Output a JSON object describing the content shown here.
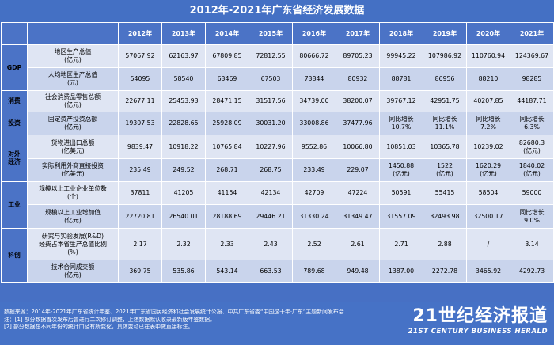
{
  "title": "2012年-2021年广东省经济发展数据",
  "years": [
    "2012年",
    "2013年",
    "2014年",
    "2015年",
    "2016年",
    "2017年",
    "2018年",
    "2019年",
    "2020年",
    "2021年"
  ],
  "categories": {
    "gdp": "GDP",
    "consumption": "消费",
    "investment": "投资",
    "trade1": "对外",
    "trade2": "经济",
    "industry": "工业",
    "innovation": "科创"
  },
  "rows": [
    {
      "label": [
        "地区生产总值",
        "(亿元)"
      ],
      "values": [
        [
          "57067.92"
        ],
        [
          "62163.97"
        ],
        [
          "67809.85"
        ],
        [
          "72812.55"
        ],
        [
          "80666.72"
        ],
        [
          "89705.23"
        ],
        [
          "99945.22"
        ],
        [
          "107986.92"
        ],
        [
          "110760.94"
        ],
        [
          "124369.67"
        ]
      ]
    },
    {
      "label": [
        "人均地区生产总值",
        "(元)"
      ],
      "values": [
        [
          "54095"
        ],
        [
          "58540"
        ],
        [
          "63469"
        ],
        [
          "67503"
        ],
        [
          "73844"
        ],
        [
          "80932"
        ],
        [
          "88781"
        ],
        [
          "86956"
        ],
        [
          "88210"
        ],
        [
          "98285"
        ]
      ]
    },
    {
      "label": [
        "社会消费品零售总额",
        "(亿元)"
      ],
      "values": [
        [
          "22677.11"
        ],
        [
          "25453.93"
        ],
        [
          "28471.15"
        ],
        [
          "31517.56"
        ],
        [
          "34739.00"
        ],
        [
          "38200.07"
        ],
        [
          "39767.12"
        ],
        [
          "42951.75"
        ],
        [
          "40207.85"
        ],
        [
          "44187.71"
        ]
      ]
    },
    {
      "label": [
        "固定资产投资总额",
        "(亿元)"
      ],
      "values": [
        [
          "19307.53"
        ],
        [
          "22828.65"
        ],
        [
          "25928.09"
        ],
        [
          "30031.20"
        ],
        [
          "33008.86"
        ],
        [
          "37477.96"
        ],
        [
          "同比增长",
          "10.7%"
        ],
        [
          "同比增长",
          "11.1%"
        ],
        [
          "同比增长",
          "7.2%"
        ],
        [
          "同比增长",
          "6.3%"
        ]
      ]
    },
    {
      "label": [
        "货物进出口总额",
        "(亿美元)"
      ],
      "values": [
        [
          "9839.47"
        ],
        [
          "10918.22"
        ],
        [
          "10765.84"
        ],
        [
          "10227.96"
        ],
        [
          "9552.86"
        ],
        [
          "10066.80"
        ],
        [
          "10851.03"
        ],
        [
          "10365.78"
        ],
        [
          "10239.02"
        ],
        [
          "82680.3",
          "(亿元)"
        ]
      ]
    },
    {
      "label": [
        "实际利用外商直接投资",
        "(亿美元)"
      ],
      "values": [
        [
          "235.49"
        ],
        [
          "249.52"
        ],
        [
          "268.71"
        ],
        [
          "268.75"
        ],
        [
          "233.49"
        ],
        [
          "229.07"
        ],
        [
          "1450.88",
          "(亿元)"
        ],
        [
          "1522",
          "(亿元)"
        ],
        [
          "1620.29",
          "(亿元)"
        ],
        [
          "1840.02",
          "(亿元)"
        ]
      ]
    },
    {
      "label": [
        "规模以上工业企业单位数",
        "(个)"
      ],
      "values": [
        [
          "37811"
        ],
        [
          "41205"
        ],
        [
          "41154"
        ],
        [
          "42134"
        ],
        [
          "42709"
        ],
        [
          "47224"
        ],
        [
          "50591"
        ],
        [
          "55415"
        ],
        [
          "58504"
        ],
        [
          "59000"
        ]
      ]
    },
    {
      "label": [
        "规模以上工业增加值",
        "(亿元)"
      ],
      "values": [
        [
          "22720.81"
        ],
        [
          "26540.01"
        ],
        [
          "28188.69"
        ],
        [
          "29446.21"
        ],
        [
          "31330.24"
        ],
        [
          "31349.47"
        ],
        [
          "31557.09"
        ],
        [
          "32493.98"
        ],
        [
          "32500.17"
        ],
        [
          "同比增长",
          "9.0%"
        ]
      ]
    },
    {
      "label": [
        "研究与实验发展(R&D)",
        "经费占本省生产总值比例",
        "(%)"
      ],
      "values": [
        [
          "2.17"
        ],
        [
          "2.32"
        ],
        [
          "2.33"
        ],
        [
          "2.43"
        ],
        [
          "2.52"
        ],
        [
          "2.61"
        ],
        [
          "2.71"
        ],
        [
          "2.88"
        ],
        [
          "/"
        ],
        [
          "3.14"
        ]
      ]
    },
    {
      "label": [
        "技术合同成交额",
        "(亿元)"
      ],
      "values": [
        [
          "369.75"
        ],
        [
          "535.86"
        ],
        [
          "543.14"
        ],
        [
          "663.53"
        ],
        [
          "789.68"
        ],
        [
          "949.48"
        ],
        [
          "1387.00"
        ],
        [
          "2272.78"
        ],
        [
          "3465.92"
        ],
        [
          "4292.73"
        ]
      ]
    }
  ],
  "footer": {
    "notes": [
      "数据来源：2014年-2021年广东省统计年鉴、2021年广东省国民经济和社会发展统计公报、中共广东省委“中国这十年·广东”主题新闻发布会",
      "注：[1] 部分数据首次发布后曾进行二次修订调整，上述数据默认收录最新版年鉴数据。",
      "[2] 部分数据在不同年份的统计口径有所变化，具体变动已在表中做直接标注。"
    ],
    "brand_cn": "21世纪经济报道",
    "brand_en": "21ST CENTURY BUSINESS HERALD"
  }
}
